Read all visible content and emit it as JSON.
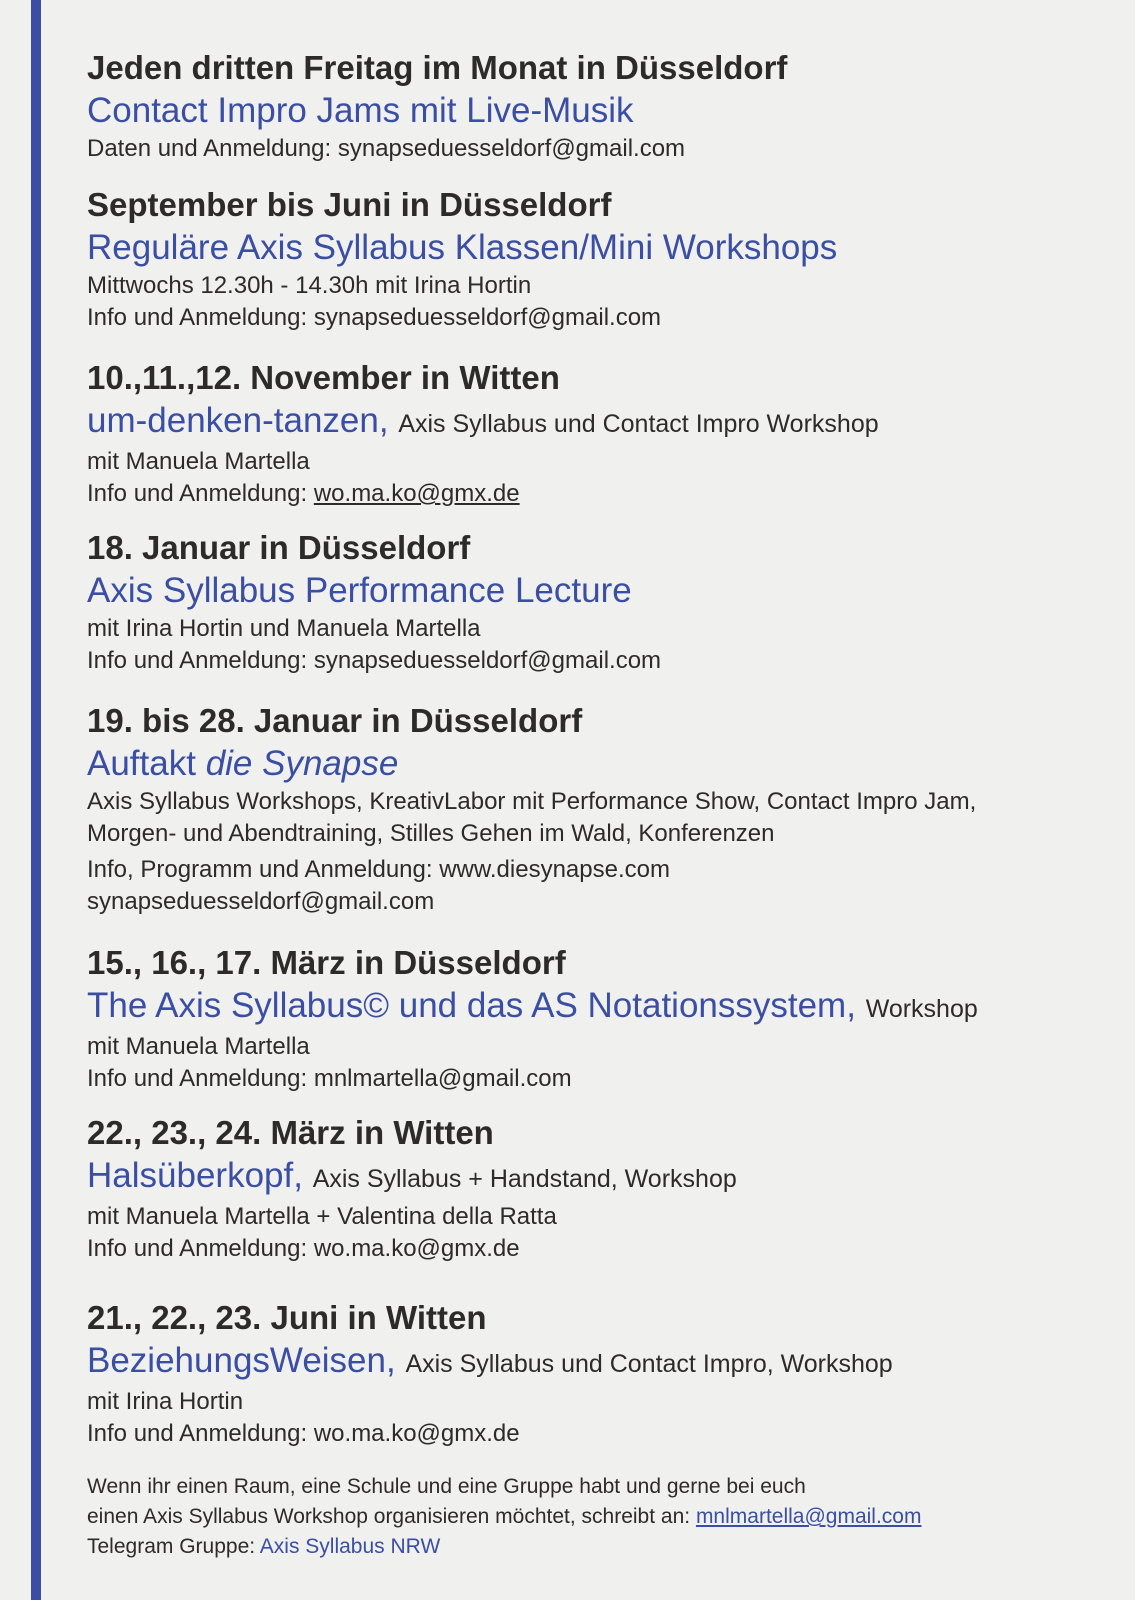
{
  "events": [
    {
      "heading": "Jeden dritten Freitag im Monat in Düsseldorf",
      "title": "Contact Impro Jams mit Live-Musik",
      "lines": [
        "Daten und Anmeldung: synapseduesseldorf@gmail.com"
      ]
    },
    {
      "heading": "September bis Juni in Düsseldorf",
      "title": "Reguläre Axis Syllabus Klassen/Mini Workshops",
      "lines": [
        "Mittwochs 12.30h - 14.30h mit Irina Hortin",
        "Info und Anmeldung: synapseduesseldorf@gmail.com"
      ]
    },
    {
      "heading": "10.,11.,12. November in Witten",
      "title": "um-denken-tanzen,",
      "subtitle": "Axis Syllabus und Contact Impro Workshop",
      "lines": [
        "mit Manuela Martella"
      ],
      "contact": {
        "label": "Info und Anmeldung:",
        "link": "wo.ma.ko@gmx.de"
      }
    },
    {
      "heading": "18. Januar in Düsseldorf",
      "title": "Axis Syllabus Performance Lecture",
      "lines": [
        "mit Irina Hortin und Manuela Martella",
        "Info und Anmeldung: synapseduesseldorf@gmail.com"
      ]
    },
    {
      "heading": "19. bis 28. Januar in Düsseldorf",
      "title": "Auftakt",
      "title_italic": "die Synapse",
      "lines": [
        "Axis Syllabus Workshops, KreativLabor mit Performance Show, Contact Impro Jam,",
        "Morgen- und Abendtraining, Stilles Gehen im Wald, Konferenzen",
        "Info, Programm und Anmeldung:  www.diesynapse.com",
        "synapseduesseldorf@gmail.com"
      ]
    },
    {
      "heading": "15., 16., 17. März in Düsseldorf",
      "title": "The Axis Syllabus© und das AS Notationssystem,",
      "subtitle": "Workshop",
      "lines": [
        "mit Manuela Martella",
        "Info und Anmeldung: mnlmartella@gmail.com"
      ]
    },
    {
      "heading": "22., 23., 24. März in Witten",
      "title": "Halsüberkopf,",
      "subtitle": "Axis Syllabus + Handstand,  Workshop",
      "lines": [
        "mit Manuela Martella + Valentina della Ratta",
        "Info und Anmeldung: wo.ma.ko@gmx.de"
      ]
    },
    {
      "heading": "21., 22., 23. Juni in Witten",
      "title": "BeziehungsWeisen,",
      "subtitle": "Axis Syllabus und Contact Impro,  Workshop",
      "lines": [
        "mit Irina Hortin",
        "Info und Anmeldung: wo.ma.ko@gmx.de"
      ]
    }
  ],
  "footer": {
    "line1": "Wenn ihr einen Raum, eine Schule und eine Gruppe habt und gerne bei euch",
    "line2": "einen Axis Syllabus Workshop organisieren möchtet, schreibt an:",
    "email": "mnlmartella@gmail.com",
    "telegram_label": "Telegram Gruppe:",
    "telegram_group": "Axis Syllabus NRW"
  }
}
